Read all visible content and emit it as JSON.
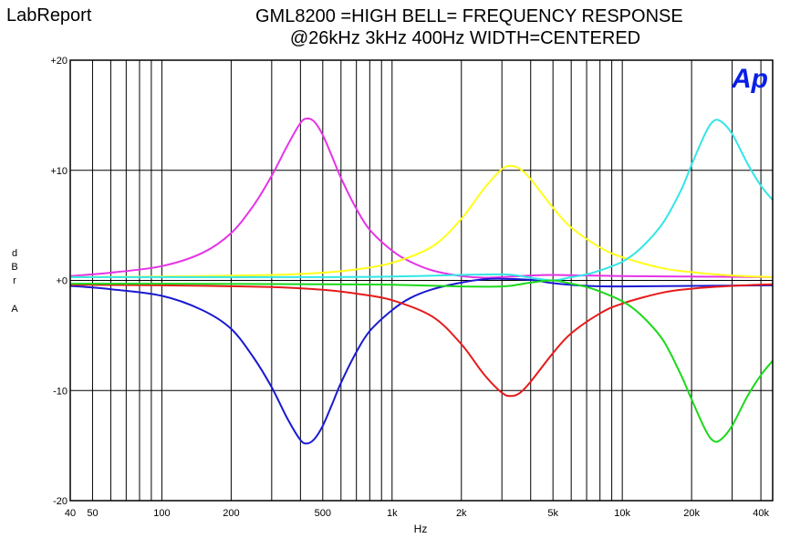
{
  "app": {
    "title": "LabReport"
  },
  "chart_data": {
    "type": "line",
    "title": "GML8200 =HIGH BELL= FREQUENCY RESPONSE",
    "subtitle": "@26kHz 3kHz 400Hz WIDTH=CENTERED",
    "xlabel": "Hz",
    "ylabel": [
      "d",
      "B",
      "r",
      "",
      "A"
    ],
    "xscale": "log",
    "xlim": [
      40,
      45000
    ],
    "ylim": [
      -20,
      20
    ],
    "grid": true,
    "x_ticks": [
      {
        "value": 40,
        "label": "40"
      },
      {
        "value": 50,
        "label": "50"
      },
      {
        "value": 100,
        "label": "100"
      },
      {
        "value": 200,
        "label": "200"
      },
      {
        "value": 500,
        "label": "500"
      },
      {
        "value": 1000,
        "label": "1k"
      },
      {
        "value": 2000,
        "label": "2k"
      },
      {
        "value": 5000,
        "label": "5k"
      },
      {
        "value": 10000,
        "label": "10k"
      },
      {
        "value": 20000,
        "label": "20k"
      },
      {
        "value": 40000,
        "label": "40k"
      }
    ],
    "x_minor_gridlines": [
      60,
      70,
      80,
      90,
      300,
      400,
      600,
      700,
      800,
      900,
      3000,
      4000,
      6000,
      7000,
      8000,
      9000,
      30000
    ],
    "y_ticks": [
      {
        "value": 20,
        "label": "+20"
      },
      {
        "value": 10,
        "label": "+10"
      },
      {
        "value": 0,
        "label": "+0"
      },
      {
        "value": -10,
        "label": "-10"
      },
      {
        "value": -20,
        "label": "-20"
      }
    ],
    "logo": {
      "text": "Ap",
      "color": "#0a1ee6"
    },
    "series": [
      {
        "color": "#e633e6",
        "x": [
          40,
          60,
          100,
          150,
          200,
          250,
          300,
          350,
          400,
          430,
          460,
          500,
          550,
          600,
          700,
          800,
          1000,
          1200,
          1500,
          2000,
          2500,
          3000,
          4000,
          5000,
          7000,
          10000,
          20000,
          45000
        ],
        "y": [
          0.4,
          0.7,
          1.3,
          2.5,
          4.3,
          6.8,
          9.5,
          12.2,
          14.3,
          14.7,
          14.4,
          13.2,
          11.2,
          9.3,
          6.5,
          4.6,
          2.7,
          1.7,
          0.9,
          0.4,
          0.25,
          0.3,
          0.45,
          0.5,
          0.45,
          0.4,
          0.35,
          0.3
        ]
      },
      {
        "color": "#1a1ad1",
        "x": [
          40,
          60,
          100,
          150,
          200,
          250,
          300,
          350,
          400,
          430,
          460,
          500,
          550,
          600,
          700,
          800,
          1000,
          1200,
          1500,
          2000,
          2500,
          3000,
          4000,
          5000,
          7000,
          10000,
          20000,
          45000
        ],
        "y": [
          -0.5,
          -0.8,
          -1.4,
          -2.7,
          -4.4,
          -7.0,
          -9.7,
          -12.5,
          -14.5,
          -14.8,
          -14.4,
          -13.2,
          -11.2,
          -9.3,
          -6.5,
          -4.6,
          -2.7,
          -1.6,
          -0.8,
          -0.2,
          0.1,
          0.15,
          0.05,
          -0.25,
          -0.5,
          -0.55,
          -0.5,
          -0.45
        ]
      },
      {
        "color": "#ffff1a",
        "x": [
          40,
          100,
          300,
          500,
          700,
          1000,
          1500,
          2000,
          2500,
          3000,
          3300,
          3600,
          4000,
          5000,
          6000,
          8000,
          10000,
          15000,
          20000,
          30000,
          45000
        ],
        "y": [
          0.3,
          0.35,
          0.5,
          0.7,
          1.0,
          1.6,
          3.1,
          5.6,
          8.3,
          10.1,
          10.4,
          10.1,
          9.2,
          6.6,
          4.8,
          3.0,
          2.1,
          1.1,
          0.75,
          0.45,
          0.3
        ]
      },
      {
        "color": "#e61a1a",
        "x": [
          40,
          100,
          300,
          500,
          700,
          1000,
          1500,
          2000,
          2500,
          3000,
          3300,
          3600,
          4000,
          5000,
          6000,
          8000,
          10000,
          15000,
          20000,
          30000,
          45000
        ],
        "y": [
          -0.4,
          -0.45,
          -0.6,
          -0.85,
          -1.2,
          -1.8,
          -3.3,
          -5.8,
          -8.5,
          -10.2,
          -10.5,
          -10.2,
          -9.2,
          -6.6,
          -4.8,
          -3.0,
          -2.1,
          -1.1,
          -0.75,
          -0.5,
          -0.35
        ]
      },
      {
        "color": "#33e6e6",
        "x": [
          40,
          100,
          500,
          1000,
          2000,
          3000,
          3500,
          4000,
          5000,
          6000,
          7000,
          8000,
          10000,
          12000,
          15000,
          18000,
          20000,
          23000,
          25000,
          27000,
          30000,
          35000,
          40000,
          45000
        ],
        "y": [
          0.3,
          0.3,
          0.3,
          0.35,
          0.5,
          0.55,
          0.45,
          0.25,
          0.0,
          0.3,
          0.55,
          0.9,
          1.7,
          2.9,
          5.2,
          8.2,
          10.5,
          13.4,
          14.5,
          14.4,
          13.3,
          10.6,
          8.6,
          7.3
        ]
      },
      {
        "color": "#1ad91a",
        "x": [
          40,
          100,
          500,
          1000,
          2000,
          3000,
          3500,
          4000,
          5000,
          6000,
          7000,
          8000,
          10000,
          12000,
          15000,
          18000,
          20000,
          23000,
          25000,
          27000,
          30000,
          35000,
          40000,
          45000
        ],
        "y": [
          -0.3,
          -0.3,
          -0.35,
          -0.4,
          -0.55,
          -0.55,
          -0.4,
          -0.2,
          0.0,
          -0.3,
          -0.6,
          -1.0,
          -1.9,
          -3.1,
          -5.4,
          -8.6,
          -10.8,
          -13.6,
          -14.6,
          -14.4,
          -13.2,
          -10.5,
          -8.6,
          -7.3
        ]
      }
    ]
  }
}
